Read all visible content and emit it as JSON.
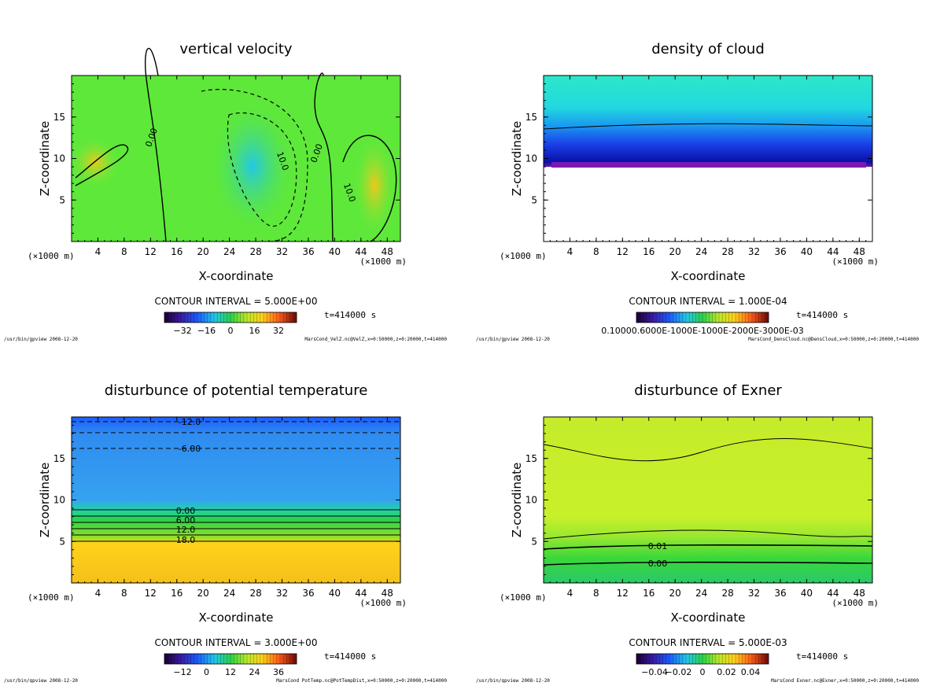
{
  "panels": [
    {
      "title": "vertical velocity",
      "xlabel": "X-coordinate",
      "ylabel": "Z-coordinate",
      "x_unit": "(×1000 m)",
      "x_unit_right": "(×1000 m)",
      "xticks": [
        "4",
        "8",
        "12",
        "16",
        "20",
        "24",
        "28",
        "32",
        "36",
        "40",
        "44",
        "48"
      ],
      "yticks": [
        "5",
        "10",
        "15"
      ],
      "contour_interval": "CONTOUR INTERVAL = 5.000E+00",
      "time": "t=414000 s",
      "colorbar_ticks": [
        "−32",
        "−16",
        "0",
        "16",
        "32"
      ],
      "contour_labels": [
        "0.00",
        "10.0",
        "0.00",
        "10.0"
      ],
      "footer_left": "/usr/bin/gpview  2008-12-20",
      "footer_right": "MarsCond_VelZ.nc@VelZ,x=0:50000,z=0:20000,t=414000",
      "bg_color": "#5ee83a"
    },
    {
      "title": "density of cloud",
      "xlabel": "X-coordinate",
      "ylabel": "Z-coordinate",
      "x_unit": "(×1000 m)",
      "x_unit_right": "(×1000 m)",
      "xticks": [
        "4",
        "8",
        "12",
        "16",
        "20",
        "24",
        "28",
        "32",
        "36",
        "40",
        "44",
        "48"
      ],
      "yticks": [
        "5",
        "10",
        "15"
      ],
      "contour_interval": "CONTOUR INTERVAL = 1.000E-04",
      "time": "t=414000 s",
      "colorbar_ticks": [
        "0.10000.6000E-1000E-1000E-2000E-3000E-03"
      ],
      "contour_labels": [],
      "footer_left": "/usr/bin/gpview  2008-12-20",
      "footer_right": "MarsCond_DensCloud.nc@DensCloud,x=0:50000,z=0:20000,t=414000",
      "bg_color": "#20e6c8"
    },
    {
      "title": "disturbunce of potential temperature",
      "xlabel": "X-coordinate",
      "ylabel": "Z-coordinate",
      "x_unit": "(×1000 m)",
      "x_unit_right": "(×1000 m)",
      "xticks": [
        "4",
        "8",
        "12",
        "16",
        "20",
        "24",
        "28",
        "32",
        "36",
        "40",
        "44",
        "48"
      ],
      "yticks": [
        "5",
        "10",
        "15"
      ],
      "contour_interval": "CONTOUR INTERVAL = 3.000E+00",
      "time": "t=414000 s",
      "colorbar_ticks": [
        "−12",
        "0",
        "12",
        "24",
        "36"
      ],
      "contour_labels": [
        "-12.0",
        "-6.00",
        "0.00",
        "6.00",
        "12.0",
        "18.0"
      ],
      "footer_left": "/usr/bin/gpview  2008-12-20",
      "footer_right": "MarsCond_PotTemp.nc@PotTempDist,x=0:50000,z=0:20000,t=414000",
      "bg_color": "#2f9bf0"
    },
    {
      "title": "disturbunce of Exner",
      "xlabel": "X-coordinate",
      "ylabel": "Z-coordinate",
      "x_unit": "(×1000 m)",
      "x_unit_right": "(×1000 m)",
      "xticks": [
        "4",
        "8",
        "12",
        "16",
        "20",
        "24",
        "28",
        "32",
        "36",
        "40",
        "44",
        "48"
      ],
      "yticks": [
        "5",
        "10",
        "15"
      ],
      "contour_interval": "CONTOUR INTERVAL = 5.000E-03",
      "time": "t=414000 s",
      "colorbar_ticks": [
        "−0.04",
        "−0.02",
        "0",
        "0.02",
        "0.04"
      ],
      "contour_labels": [
        "0.01",
        "0.00"
      ],
      "footer_left": "/usr/bin/gpview  2008-12-20",
      "footer_right": "MarsCond_Exner.nc@Exner,x=0:50000,z=0:20000,t=414000",
      "bg_color": "#c4f02a"
    }
  ],
  "chart_data": [
    {
      "type": "heatmap",
      "title": "vertical velocity",
      "xlabel": "X-coordinate",
      "ylabel": "Z-coordinate",
      "xlim": [
        0,
        50
      ],
      "ylim": [
        0,
        20
      ],
      "contour_interval": 5.0,
      "colorbar_range": [
        -40,
        40
      ],
      "colorbar_ticks": [
        -32,
        -16,
        0,
        16,
        32
      ]
    },
    {
      "type": "heatmap",
      "title": "density of cloud",
      "xlabel": "X-coordinate",
      "ylabel": "Z-coordinate",
      "xlim": [
        0,
        50
      ],
      "ylim": [
        0,
        20
      ],
      "contour_interval": 0.0001
    },
    {
      "type": "heatmap",
      "title": "disturbunce of potential temperature",
      "xlabel": "X-coordinate",
      "ylabel": "Z-coordinate",
      "xlim": [
        0,
        50
      ],
      "ylim": [
        0,
        20
      ],
      "contour_interval": 3.0,
      "colorbar_range": [
        -18,
        42
      ],
      "colorbar_ticks": [
        -12,
        0,
        12,
        24,
        36
      ]
    },
    {
      "type": "heatmap",
      "title": "disturbunce of Exner",
      "xlabel": "X-coordinate",
      "ylabel": "Z-coordinate",
      "xlim": [
        0,
        50
      ],
      "ylim": [
        0,
        20
      ],
      "contour_interval": 0.005,
      "colorbar_range": [
        -0.05,
        0.05
      ],
      "colorbar_ticks": [
        -0.04,
        -0.02,
        0,
        0.02,
        0.04
      ]
    }
  ]
}
